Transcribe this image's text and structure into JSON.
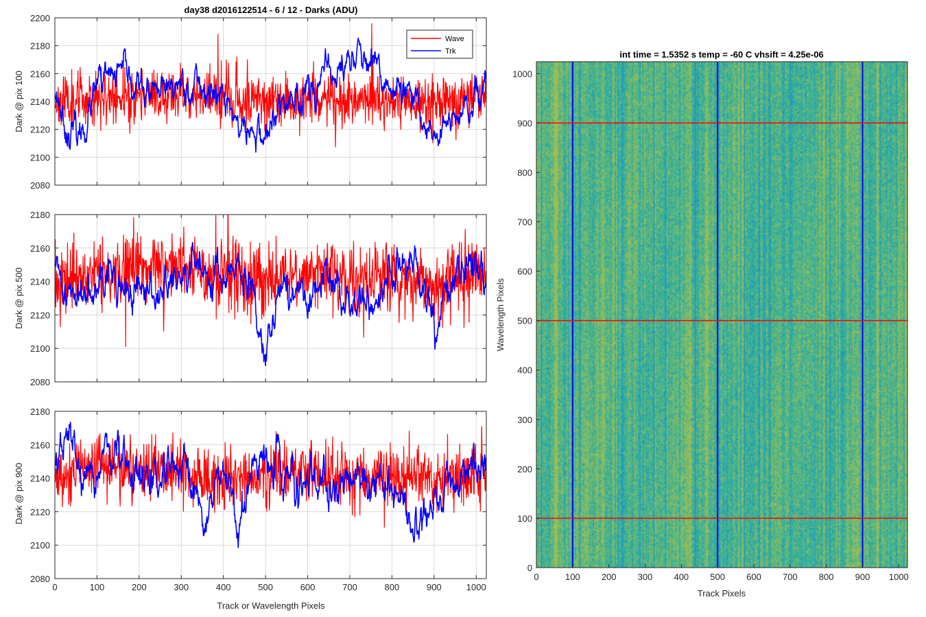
{
  "colors": {
    "wave": "#ff0000",
    "trk": "#0000ff",
    "grid": "#d9d9d9",
    "axis": "#262626"
  },
  "chart_data": [
    {
      "type": "line",
      "title": "day38 d2016122514 - 6 / 12 - Darks (ADU)",
      "xlabel": "",
      "ylabel": "Dark @ pix 100",
      "xlim": [
        0,
        1024
      ],
      "ylim": [
        2080,
        2200
      ],
      "xticks": [
        "0",
        "100",
        "200",
        "300",
        "400",
        "500",
        "600",
        "700",
        "800",
        "900",
        "1000"
      ],
      "yticks": [
        "2080",
        "2100",
        "2120",
        "2140",
        "2160",
        "2180",
        "2200"
      ],
      "grid": true,
      "legend": "top-right",
      "series": [
        {
          "name": "Wave",
          "color": "#ff0000",
          "mean": 2142,
          "noise": 11,
          "seed": 11,
          "x": [
            0,
            100,
            200,
            300,
            400,
            500,
            600,
            700,
            800,
            900,
            1024
          ],
          "trend": [
            2140,
            2144,
            2143,
            2146,
            2142,
            2140,
            2143,
            2141,
            2139,
            2140,
            2142
          ]
        },
        {
          "name": "Trk",
          "color": "#0000ff",
          "mean": 2142,
          "noise": 4,
          "seed": 23,
          "x": [
            0,
            30,
            60,
            100,
            150,
            200,
            250,
            300,
            350,
            400,
            450,
            500,
            550,
            600,
            650,
            700,
            720,
            750,
            800,
            850,
            900,
            950,
            1000,
            1024
          ],
          "trend": [
            2150,
            2120,
            2115,
            2148,
            2160,
            2150,
            2142,
            2155,
            2150,
            2142,
            2118,
            2115,
            2140,
            2150,
            2158,
            2168,
            2178,
            2160,
            2150,
            2138,
            2118,
            2125,
            2138,
            2145
          ]
        }
      ]
    },
    {
      "type": "line",
      "title": "",
      "xlabel": "",
      "ylabel": "Dark @ pix 500",
      "xlim": [
        0,
        1024
      ],
      "ylim": [
        2080,
        2180
      ],
      "xticks": [
        "0",
        "100",
        "200",
        "300",
        "400",
        "500",
        "600",
        "700",
        "800",
        "900",
        "1000"
      ],
      "yticks": [
        "2080",
        "2100",
        "2120",
        "2140",
        "2160",
        "2180"
      ],
      "grid": true,
      "series": [
        {
          "name": "Wave",
          "color": "#ff0000",
          "mean": 2143,
          "noise": 12,
          "seed": 37,
          "x": [
            0,
            100,
            200,
            300,
            400,
            500,
            600,
            700,
            800,
            900,
            1024
          ],
          "trend": [
            2140,
            2145,
            2148,
            2150,
            2144,
            2140,
            2146,
            2143,
            2142,
            2140,
            2144
          ]
        },
        {
          "name": "Trk",
          "color": "#0000ff",
          "mean": 2140,
          "noise": 4,
          "seed": 41,
          "x": [
            0,
            50,
            100,
            150,
            200,
            250,
            300,
            350,
            400,
            450,
            500,
            550,
            600,
            650,
            700,
            750,
            800,
            850,
            900,
            950,
            1000,
            1024
          ],
          "trend": [
            2145,
            2128,
            2150,
            2138,
            2130,
            2135,
            2140,
            2150,
            2145,
            2140,
            2108,
            2140,
            2125,
            2140,
            2130,
            2125,
            2145,
            2150,
            2112,
            2140,
            2155,
            2140
          ]
        }
      ]
    },
    {
      "type": "line",
      "title": "",
      "xlabel": "Track or Wavelength Pixels",
      "ylabel": "Dark @ pix 900",
      "xlim": [
        0,
        1024
      ],
      "ylim": [
        2080,
        2180
      ],
      "xticks": [
        "0",
        "100",
        "200",
        "300",
        "400",
        "500",
        "600",
        "700",
        "800",
        "900",
        "1000"
      ],
      "yticks": [
        "2080",
        "2100",
        "2120",
        "2140",
        "2160",
        "2180"
      ],
      "grid": true,
      "series": [
        {
          "name": "Wave",
          "color": "#ff0000",
          "mean": 2142,
          "noise": 11,
          "seed": 53,
          "x": [
            0,
            100,
            200,
            300,
            400,
            500,
            600,
            700,
            800,
            900,
            1024
          ],
          "trend": [
            2140,
            2148,
            2146,
            2144,
            2140,
            2142,
            2144,
            2140,
            2140,
            2138,
            2144
          ]
        },
        {
          "name": "Trk",
          "color": "#0000ff",
          "mean": 2140,
          "noise": 4,
          "seed": 67,
          "x": [
            0,
            40,
            80,
            120,
            160,
            200,
            250,
            300,
            350,
            400,
            430,
            500,
            550,
            600,
            650,
            700,
            750,
            800,
            850,
            900,
            950,
            1000,
            1024
          ],
          "trend": [
            2150,
            2165,
            2125,
            2160,
            2145,
            2140,
            2138,
            2140,
            2118,
            2140,
            2110,
            2160,
            2140,
            2138,
            2125,
            2145,
            2140,
            2135,
            2110,
            2125,
            2140,
            2150,
            2145
          ]
        }
      ]
    },
    {
      "type": "heatmap",
      "title": "int time = 1.5352 s    temp = -60 C    vhsift = 4.25e-06",
      "xlabel": "Track Pixels",
      "ylabel": "Wavelength Pixels",
      "xlim": [
        0,
        1024
      ],
      "ylim": [
        0,
        1024
      ],
      "xticks": [
        "0",
        "100",
        "200",
        "300",
        "400",
        "500",
        "600",
        "700",
        "800",
        "900",
        "1000"
      ],
      "yticks": [
        "0",
        "100",
        "200",
        "300",
        "400",
        "500",
        "600",
        "700",
        "800",
        "900",
        "1000"
      ],
      "colormap": "parula",
      "vlines": {
        "x": [
          100,
          500,
          900
        ],
        "color": "#0000ff"
      },
      "hlines": {
        "y": [
          100,
          500,
          900
        ],
        "color": "#ff0000"
      }
    }
  ]
}
